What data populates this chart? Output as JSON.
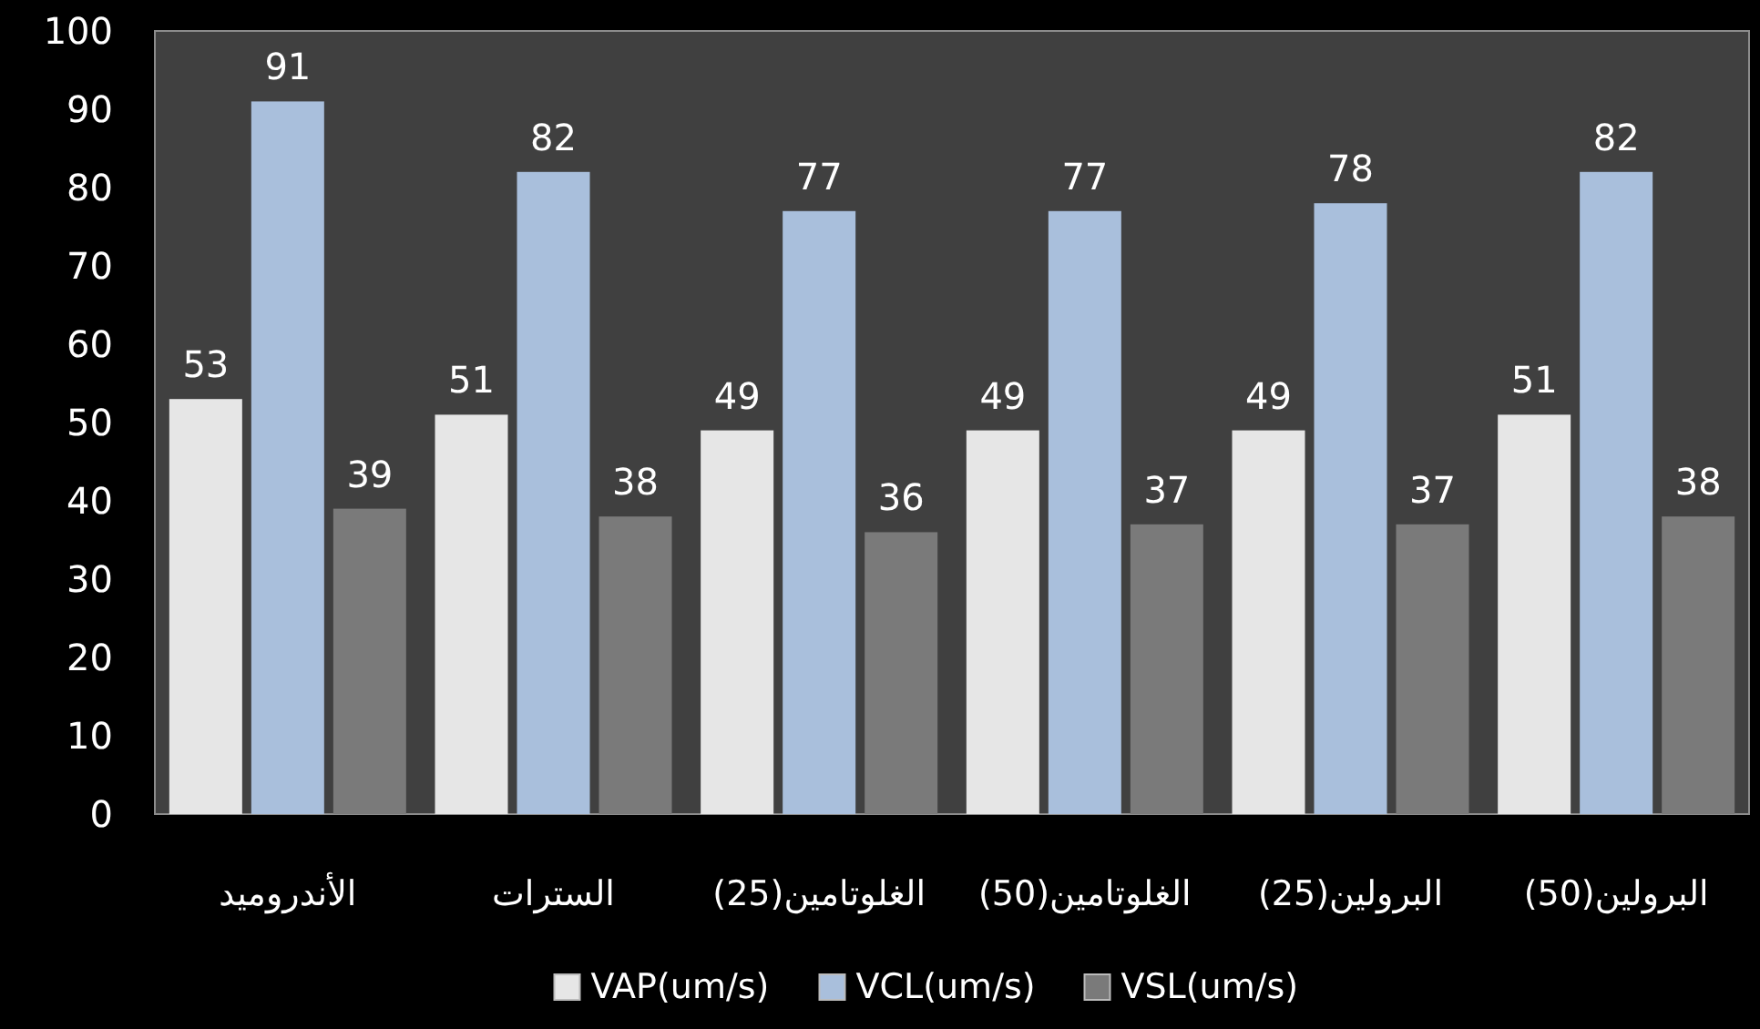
{
  "chart_data": {
    "type": "bar",
    "categories": [
      "الأندروميد",
      "السترات",
      "(25)الغلوتامين",
      "(50)الغلوتامين",
      "(25)البرولين",
      "(50)البرولين"
    ],
    "series": [
      {
        "name": "VAP(um/s)",
        "color": "#e6e6e6",
        "values": [
          53,
          51,
          49,
          49,
          49,
          51
        ]
      },
      {
        "name": "VCL(um/s)",
        "color": "#a9bfdc",
        "values": [
          91,
          82,
          77,
          77,
          78,
          82
        ]
      },
      {
        "name": "VSL(um/s)",
        "color": "#7a7a7a",
        "values": [
          39,
          38,
          36,
          37,
          37,
          38
        ]
      }
    ],
    "ylim": [
      0,
      100
    ],
    "yticks": [
      0,
      10,
      20,
      30,
      40,
      50,
      60,
      70,
      80,
      90,
      100
    ],
    "data_labels": true,
    "legend": "bottom",
    "grid": false
  }
}
